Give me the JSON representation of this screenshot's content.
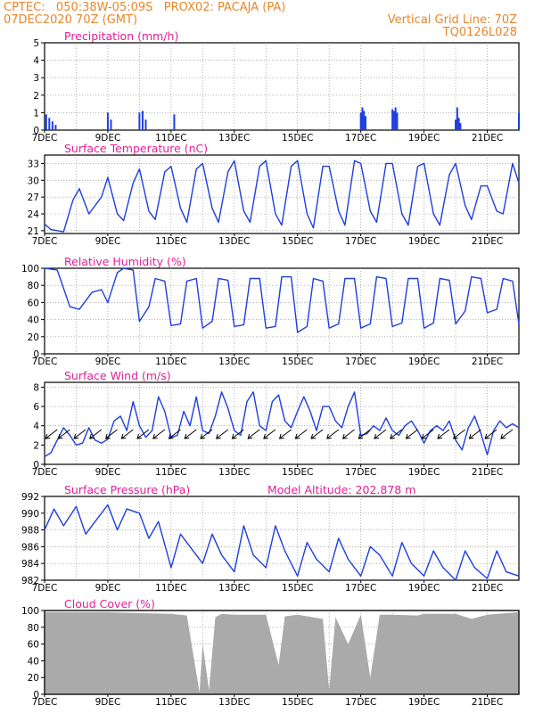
{
  "header": {
    "line1_left": "CPTEC:   050:38W-05:09S   PROX02: PACAJA (PA)",
    "line2_left": "07DEC2020 70Z (GMT)",
    "line2_right": "Vertical Grid Line: 70Z",
    "line3_right": "TQ0126L028"
  },
  "colors": {
    "header": "#e8862a",
    "title": "#e0209a",
    "line": "#1e3ee0",
    "grid": "#888888",
    "cloud": "#aaaaaa",
    "wind_arrow": "#000000"
  },
  "x_axis": {
    "ticks": [
      "7DEC",
      "9DEC",
      "11DEC",
      "13DEC",
      "15DEC",
      "17DEC",
      "19DEC",
      "21DEC"
    ],
    "day_start": 7,
    "day_end": 22
  },
  "chart_data": [
    {
      "type": "bar",
      "title": "Precipitation (mm/h)",
      "ylim": [
        0,
        5
      ],
      "yticks": [
        0,
        1,
        2,
        3,
        4,
        5
      ],
      "x_day": [
        7.05,
        7.15,
        7.25,
        7.35,
        9.0,
        9.1,
        10.0,
        10.1,
        10.2,
        11.1,
        17.0,
        17.05,
        17.1,
        17.15,
        18.0,
        18.05,
        18.1,
        18.15,
        20.0,
        20.05,
        20.1,
        20.15,
        22.0
      ],
      "values": [
        0.9,
        0.7,
        0.5,
        0.3,
        1.0,
        0.6,
        1.0,
        1.1,
        0.6,
        0.9,
        1.0,
        1.3,
        1.1,
        0.8,
        1.2,
        1.1,
        1.3,
        1.0,
        0.6,
        1.3,
        0.7,
        0.4,
        1.0
      ]
    },
    {
      "type": "line",
      "title": "Surface Temperature (nC)",
      "ylim": [
        20.5,
        34.5
      ],
      "yticks": [
        21,
        24,
        27,
        30,
        33
      ],
      "series": [
        {
          "x_day": [
            7.0,
            7.2,
            7.6,
            7.9,
            8.1,
            8.4,
            8.8,
            9.0,
            9.3,
            9.5,
            9.8,
            10.0,
            10.3,
            10.5,
            10.8,
            11.0,
            11.3,
            11.5,
            11.8,
            12.0,
            12.3,
            12.5,
            12.8,
            13.0,
            13.3,
            13.5,
            13.8,
            14.0,
            14.3,
            14.5,
            14.8,
            15.0,
            15.3,
            15.5,
            15.8,
            16.0,
            16.3,
            16.5,
            16.8,
            17.0,
            17.3,
            17.5,
            17.8,
            18.0,
            18.3,
            18.5,
            18.8,
            19.0,
            19.3,
            19.5,
            19.8,
            20.0,
            20.3,
            20.5,
            20.8,
            21.0,
            21.3,
            21.5,
            21.8,
            22.0
          ],
          "values": [
            22.2,
            21.2,
            20.8,
            26.5,
            28.5,
            24.0,
            27.0,
            30.5,
            24.0,
            22.8,
            29.5,
            32.0,
            24.5,
            23.0,
            31.5,
            32.5,
            25.0,
            22.5,
            32.0,
            33.0,
            25.0,
            22.5,
            31.5,
            33.5,
            24.5,
            22.5,
            32.5,
            33.5,
            24.0,
            22.0,
            32.5,
            33.5,
            24.0,
            21.5,
            32.5,
            32.5,
            24.5,
            22.0,
            33.5,
            33.0,
            24.5,
            22.5,
            33.0,
            33.0,
            24.0,
            22.0,
            32.5,
            33.0,
            24.0,
            22.0,
            31.0,
            33.0,
            25.5,
            23.0,
            29.0,
            29.0,
            24.5,
            24.0,
            33.0,
            29.5
          ]
        }
      ]
    },
    {
      "type": "line",
      "title": "Relative Humidity (%)",
      "ylim": [
        0,
        100
      ],
      "yticks": [
        0,
        20,
        40,
        60,
        80,
        100
      ],
      "series": [
        {
          "x_day": [
            7.0,
            7.4,
            7.8,
            8.1,
            8.5,
            8.8,
            9.0,
            9.3,
            9.5,
            9.8,
            10.0,
            10.3,
            10.5,
            10.8,
            11.0,
            11.3,
            11.5,
            11.8,
            12.0,
            12.3,
            12.5,
            12.8,
            13.0,
            13.3,
            13.5,
            13.8,
            14.0,
            14.3,
            14.5,
            14.8,
            15.0,
            15.3,
            15.5,
            15.8,
            16.0,
            16.3,
            16.5,
            16.8,
            17.0,
            17.3,
            17.5,
            17.8,
            18.0,
            18.3,
            18.5,
            18.8,
            19.0,
            19.3,
            19.5,
            19.8,
            20.0,
            20.3,
            20.5,
            20.8,
            21.0,
            21.3,
            21.5,
            21.8,
            22.0
          ],
          "values": [
            100,
            98,
            55,
            52,
            72,
            75,
            60,
            95,
            100,
            98,
            38,
            55,
            88,
            85,
            33,
            35,
            85,
            88,
            30,
            38,
            88,
            86,
            32,
            34,
            88,
            88,
            30,
            32,
            90,
            90,
            25,
            32,
            88,
            85,
            30,
            35,
            88,
            88,
            30,
            35,
            90,
            88,
            32,
            36,
            88,
            88,
            30,
            36,
            88,
            86,
            35,
            50,
            90,
            88,
            48,
            52,
            88,
            85,
            35
          ]
        }
      ]
    },
    {
      "type": "line",
      "title": "Surface Wind (m/s)",
      "ylim": [
        0,
        8.5
      ],
      "yticks": [
        0,
        2,
        4,
        6,
        8
      ],
      "series": [
        {
          "x_day": [
            7.0,
            7.2,
            7.4,
            7.6,
            7.8,
            8.0,
            8.2,
            8.4,
            8.6,
            8.8,
            9.0,
            9.2,
            9.4,
            9.6,
            9.8,
            10.0,
            10.2,
            10.4,
            10.6,
            10.8,
            11.0,
            11.2,
            11.4,
            11.6,
            11.8,
            12.0,
            12.2,
            12.4,
            12.6,
            12.8,
            13.0,
            13.2,
            13.4,
            13.6,
            13.8,
            14.0,
            14.2,
            14.4,
            14.6,
            14.8,
            15.0,
            15.2,
            15.4,
            15.6,
            15.8,
            16.0,
            16.2,
            16.4,
            16.6,
            16.8,
            17.0,
            17.2,
            17.4,
            17.6,
            17.8,
            18.0,
            18.2,
            18.4,
            18.6,
            18.8,
            19.0,
            19.2,
            19.4,
            19.6,
            19.8,
            20.0,
            20.2,
            20.4,
            20.6,
            20.8,
            21.0,
            21.2,
            21.4,
            21.6,
            21.8,
            22.0
          ],
          "values": [
            0.8,
            1.2,
            2.5,
            3.8,
            3.0,
            2.0,
            2.2,
            3.8,
            2.5,
            2.2,
            2.6,
            4.5,
            5.0,
            3.5,
            6.5,
            4.0,
            2.8,
            3.5,
            7.0,
            5.5,
            2.8,
            3.0,
            5.5,
            4.0,
            7.0,
            3.5,
            3.2,
            5.0,
            7.5,
            5.8,
            3.5,
            3.0,
            6.5,
            7.5,
            4.0,
            3.5,
            6.5,
            7.2,
            4.5,
            3.8,
            5.5,
            7.0,
            5.5,
            3.5,
            6.0,
            6.0,
            4.5,
            3.8,
            6.0,
            7.5,
            3.0,
            3.2,
            4.0,
            3.5,
            4.8,
            3.5,
            3.0,
            4.0,
            4.5,
            3.5,
            2.2,
            3.5,
            4.0,
            3.5,
            4.5,
            2.5,
            1.5,
            3.8,
            5.0,
            3.2,
            1.0,
            3.5,
            4.5,
            3.8,
            4.2,
            3.8
          ]
        }
      ],
      "arrows_x_day": [
        7.4,
        7.8,
        8.3,
        8.8,
        9.3,
        9.8,
        10.3,
        10.8,
        11.3,
        11.8,
        12.3,
        12.8,
        13.3,
        13.8,
        14.3,
        14.8,
        15.3,
        15.8,
        16.3,
        16.8,
        17.3,
        17.8,
        18.3,
        18.8,
        19.3,
        19.8,
        20.3,
        20.8,
        21.3,
        21.8
      ]
    },
    {
      "type": "line",
      "title": "Surface Pressure (hPa)",
      "annotation": "Model Altitude: 202.878  m",
      "ylim": [
        982,
        992
      ],
      "yticks": [
        982,
        984,
        986,
        988,
        990,
        992
      ],
      "series": [
        {
          "x_day": [
            7.0,
            7.3,
            7.6,
            8.0,
            8.3,
            8.6,
            9.0,
            9.3,
            9.6,
            10.0,
            10.3,
            10.6,
            11.0,
            11.3,
            11.6,
            12.0,
            12.3,
            12.6,
            13.0,
            13.3,
            13.6,
            14.0,
            14.3,
            14.6,
            15.0,
            15.3,
            15.6,
            16.0,
            16.3,
            16.6,
            17.0,
            17.3,
            17.6,
            18.0,
            18.3,
            18.6,
            19.0,
            19.3,
            19.6,
            20.0,
            20.3,
            20.6,
            21.0,
            21.3,
            21.6,
            22.0
          ],
          "values": [
            988.0,
            990.5,
            988.5,
            990.8,
            987.5,
            989.0,
            991.0,
            988.0,
            990.5,
            990.0,
            987.0,
            989.0,
            983.5,
            987.5,
            986.0,
            984.0,
            987.5,
            985.0,
            983.0,
            988.5,
            985.0,
            983.5,
            988.5,
            985.5,
            982.5,
            986.5,
            984.5,
            983.0,
            987.0,
            984.5,
            982.5,
            986.0,
            985.0,
            982.5,
            986.5,
            984.0,
            982.5,
            985.5,
            983.5,
            982.0,
            985.5,
            983.5,
            982.2,
            985.5,
            983.0,
            982.5
          ]
        }
      ]
    },
    {
      "type": "area",
      "title": "Cloud Cover (%)",
      "ylim": [
        0,
        100
      ],
      "yticks": [
        0,
        20,
        40,
        60,
        80,
        100
      ],
      "x_day": [
        7.0,
        9.0,
        11.0,
        11.5,
        11.9,
        12.0,
        12.2,
        12.4,
        12.6,
        13.0,
        14.0,
        14.4,
        14.6,
        15.0,
        15.8,
        16.0,
        16.2,
        16.6,
        17.0,
        17.3,
        17.6,
        18.0,
        18.8,
        19.0,
        20.0,
        20.5,
        21.0,
        22.0
      ],
      "values": [
        98,
        98,
        96,
        94,
        2,
        60,
        5,
        92,
        96,
        95,
        95,
        35,
        93,
        95,
        90,
        5,
        92,
        60,
        95,
        20,
        95,
        95,
        94,
        96,
        96,
        90,
        95,
        98
      ]
    }
  ]
}
